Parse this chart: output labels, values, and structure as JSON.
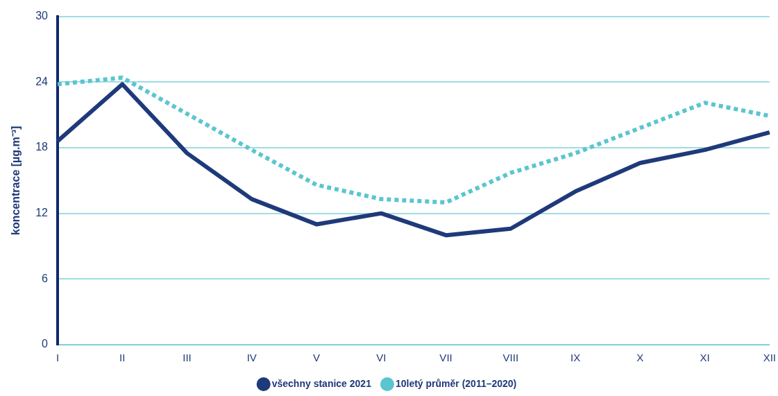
{
  "chart_data": {
    "type": "line",
    "ylabel": "koncentrace [µg.m⁻³]",
    "categories": [
      "I",
      "II",
      "III",
      "IV",
      "V",
      "VI",
      "VII",
      "VIII",
      "IX",
      "X",
      "XI",
      "XII"
    ],
    "series": [
      {
        "name": "všechny stanice 2021",
        "color": "#1f3a7a",
        "line_style": "solid",
        "values": [
          18.6,
          23.8,
          17.5,
          13.3,
          11.0,
          12.0,
          10.0,
          10.6,
          14.0,
          16.6,
          17.8,
          19.4
        ]
      },
      {
        "name": "10letý průměr (2011–2020)",
        "color": "#5bc5cf",
        "line_style": "dotted",
        "values": [
          23.8,
          24.4,
          21.1,
          17.8,
          14.6,
          13.3,
          13.0,
          15.7,
          17.5,
          19.8,
          22.1,
          20.9
        ]
      }
    ],
    "ylim": [
      0,
      30
    ],
    "yticks": [
      0,
      6,
      12,
      18,
      24,
      30
    ],
    "grid": "y",
    "legend": "bottom",
    "marker": "none"
  }
}
